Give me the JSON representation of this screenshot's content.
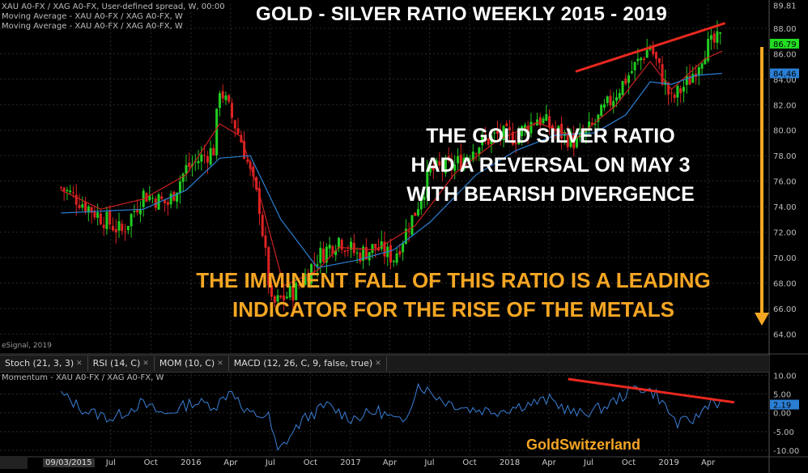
{
  "title": "GOLD - SILVER RATIO WEEKLY  2015 - 2019",
  "legend": {
    "line1": "XAU A0-FX / XAG A0-FX, User-defined spread, W, 00:00",
    "line2": "Moving Average - XAU A0-FX / XAG A0-FX, W",
    "line3": "Moving Average - XAU A0-FX / XAG A0-FX, W",
    "momentum": "Momentum - XAU A0-FX / XAG A0-FX, W",
    "esignal": "eSignal, 2019"
  },
  "tabs": [
    {
      "label": "Stoch (21, 3, 3)"
    },
    {
      "label": "RSI (14, C)"
    },
    {
      "label": "MOM (10, C)"
    },
    {
      "label": "MACD (12, 26, C, 9, false, true)"
    }
  ],
  "annotations": {
    "white_line1": "THE GOLD SILVER RATIO",
    "white_line2": "HAD A REVERSAL ON MAY 3",
    "white_line3": "WITH BEARISH DIVERGENCE",
    "gold_line1": "THE IMMINENT FALL OF THIS RATIO IS A LEADING",
    "gold_line2": "INDICATOR FOR THE RISE OF THE METALS"
  },
  "brand": "GoldSwitzerland",
  "date_box": "09/03/2015",
  "colors": {
    "background": "#000000",
    "up_candle": "#22cc22",
    "down_candle": "#dd2222",
    "ma_fast": "#cc2222",
    "ma_slow": "#2a7fd4",
    "momentum": "#3a7fd6",
    "trendline": "#e8281e",
    "arrow": "#f5a623",
    "price_tag_green": "#22dd22",
    "price_tag_blue": "#2a7fd4"
  },
  "chart_data": [
    {
      "type": "candlestick",
      "title": "GOLD - SILVER RATIO WEEKLY  2015 - 2019",
      "ylim": [
        62.5,
        89.9
      ],
      "y_ticks": [
        "89.81",
        "88.00",
        "86.00",
        "84.00",
        "82.00",
        "80.00",
        "78.00",
        "76.00",
        "74.00",
        "72.00",
        "70.00",
        "68.00",
        "66.00",
        "64.00"
      ],
      "x_ticks": [
        "Jul",
        "Oct",
        "2016",
        "Apr",
        "Jul",
        "Oct",
        "2017",
        "Apr",
        "Jul",
        "Oct",
        "2018",
        "Apr",
        "Jul",
        "Oct",
        "2019",
        "Apr"
      ],
      "last_value_label": "86.79",
      "ma_value_label": "84.46",
      "path_points": {
        "x": [
          "2015-03-09",
          "2015-04-20",
          "2015-06-08",
          "2015-07-27",
          "2015-09-14",
          "2015-11-09",
          "2015-12-21",
          "2016-02-22",
          "2016-03-07",
          "2016-04-25",
          "2016-06-06",
          "2016-07-04",
          "2016-08-29",
          "2016-10-17",
          "2016-12-05",
          "2017-01-16",
          "2017-02-27",
          "2017-04-10",
          "2017-05-29",
          "2017-07-03",
          "2017-08-28",
          "2017-10-16",
          "2017-12-04",
          "2018-01-15",
          "2018-03-05",
          "2018-04-16",
          "2018-06-04",
          "2018-07-16",
          "2018-09-03",
          "2018-10-15",
          "2018-11-19",
          "2019-01-07",
          "2019-02-18",
          "2019-03-25",
          "2019-05-03"
        ],
        "y": [
          75.5,
          74.5,
          73.2,
          72.0,
          75.0,
          74.2,
          77.0,
          78.5,
          83.4,
          79.2,
          74.0,
          66.2,
          67.5,
          70.0,
          71.5,
          70.2,
          70.8,
          70.0,
          73.6,
          76.8,
          77.2,
          78.8,
          79.6,
          79.5,
          81.0,
          80.0,
          79.0,
          80.5,
          83.0,
          85.0,
          86.6,
          82.3,
          84.0,
          86.4,
          87.2
        ]
      },
      "moving_average_fast": {
        "x": [
          "2015-03-09",
          "2015-06-08",
          "2015-09-14",
          "2015-12-21",
          "2016-03-07",
          "2016-04-25",
          "2016-06-06",
          "2016-08-01",
          "2016-10-17",
          "2016-12-05",
          "2017-02-27",
          "2017-05-29",
          "2017-08-28",
          "2017-12-04",
          "2018-03-05",
          "2018-06-04",
          "2018-09-03",
          "2018-11-19",
          "2019-01-07",
          "2019-03-25",
          "2019-05-03"
        ],
        "y": [
          75.3,
          73.8,
          74.6,
          76.5,
          80.5,
          79.5,
          75.0,
          67.8,
          69.0,
          70.8,
          70.6,
          72.5,
          76.6,
          79.2,
          80.6,
          79.4,
          82.0,
          85.4,
          83.2,
          85.6,
          86.2
        ]
      },
      "moving_average_slow": {
        "x": [
          "2015-03-09",
          "2015-09-14",
          "2015-12-21",
          "2016-03-07",
          "2016-05-16",
          "2016-07-25",
          "2016-10-17",
          "2017-01-16",
          "2017-04-10",
          "2017-07-03",
          "2017-10-16",
          "2018-01-15",
          "2018-04-16",
          "2018-07-16",
          "2018-09-24",
          "2018-11-19",
          "2019-01-07",
          "2019-03-04",
          "2019-05-03"
        ],
        "y": [
          73.5,
          73.8,
          75.3,
          77.8,
          78.0,
          73.0,
          69.2,
          69.8,
          70.6,
          72.8,
          76.5,
          78.4,
          79.6,
          79.8,
          81.2,
          83.8,
          83.6,
          84.3,
          84.46
        ]
      },
      "trendline": {
        "x": [
          "2018-06-01",
          "2019-05-10"
        ],
        "y": [
          84.6,
          88.4
        ]
      }
    },
    {
      "type": "line",
      "title": "Momentum - XAU A0-FX / XAG A0-FX, W",
      "ylim": [
        -11.5,
        11.8
      ],
      "y_ticks": [
        "10.00",
        "5.00",
        "0.00",
        "-5.00",
        "-10.00"
      ],
      "last_value_label": "2.19",
      "series": [
        {
          "x": [
            "2015-03-09",
            "2015-05-04",
            "2015-07-06",
            "2015-09-07",
            "2015-11-02",
            "2016-01-04",
            "2016-02-29",
            "2016-04-04",
            "2016-05-02",
            "2016-06-27",
            "2016-07-18",
            "2016-09-12",
            "2016-11-07",
            "2017-01-02",
            "2017-03-06",
            "2017-05-01",
            "2017-06-05",
            "2017-08-07",
            "2017-10-02",
            "2017-12-04",
            "2018-01-29",
            "2018-04-02",
            "2018-06-04",
            "2018-08-06",
            "2018-09-10",
            "2018-10-22",
            "2018-12-03",
            "2019-01-21",
            "2019-03-04",
            "2019-04-08",
            "2019-05-03"
          ],
          "y": [
            5.0,
            0.5,
            -1.5,
            2.5,
            -0.5,
            2.8,
            2.0,
            6.5,
            0.0,
            -1.0,
            -10.5,
            -2.0,
            2.0,
            -1.5,
            0.5,
            -3.0,
            7.5,
            3.0,
            1.0,
            0.5,
            2.0,
            3.5,
            -0.5,
            1.5,
            4.0,
            7.0,
            5.0,
            -3.0,
            -1.5,
            3.5,
            2.19
          ]
        }
      ],
      "trendline": {
        "x": [
          "2018-05-15",
          "2019-05-31"
        ],
        "y": [
          9.0,
          2.8
        ]
      }
    }
  ]
}
